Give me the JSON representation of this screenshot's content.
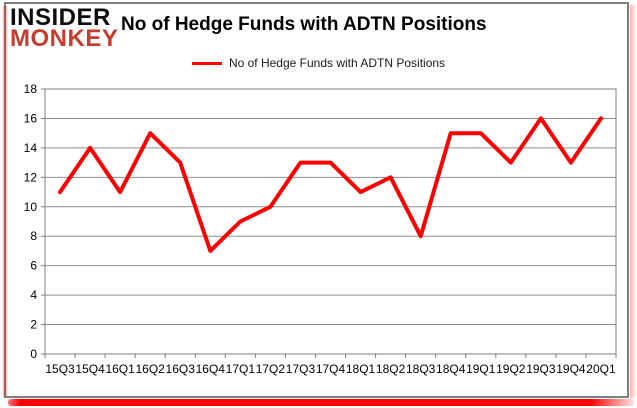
{
  "logo": {
    "line1": "INSIDER",
    "line2": "MONKEY"
  },
  "title": "No of Hedge Funds with ADTN Positions",
  "legend": {
    "label": "No of Hedge Funds with ADTN Positions"
  },
  "colors": {
    "series_red": "#ff0000",
    "logo_red": "#c63d2f",
    "grid": "#8f8f8f",
    "axis": "#7f7f7f",
    "card_border": "#7f7f7f"
  },
  "chart_data": {
    "type": "line",
    "title": "No of Hedge Funds with ADTN Positions",
    "categories": [
      "15Q3",
      "15Q4",
      "16Q1",
      "16Q2",
      "16Q3",
      "16Q4",
      "17Q1",
      "17Q2",
      "17Q3",
      "17Q4",
      "18Q1",
      "18Q2",
      "18Q3",
      "18Q4",
      "19Q1",
      "19Q2",
      "19Q3",
      "19Q4",
      "20Q1"
    ],
    "series": [
      {
        "name": "No of Hedge Funds with ADTN Positions",
        "color": "#ff0000",
        "values": [
          11,
          14,
          11,
          15,
          13,
          7,
          9,
          10,
          13,
          13,
          11,
          12,
          8,
          15,
          15,
          13,
          16,
          13,
          16
        ]
      }
    ],
    "xlabel": "",
    "ylabel": "",
    "ylim": [
      0,
      18
    ],
    "yticks": [
      0,
      2,
      4,
      6,
      8,
      10,
      12,
      14,
      16,
      18
    ],
    "grid": "horizontal",
    "legend_position": "top-center"
  }
}
